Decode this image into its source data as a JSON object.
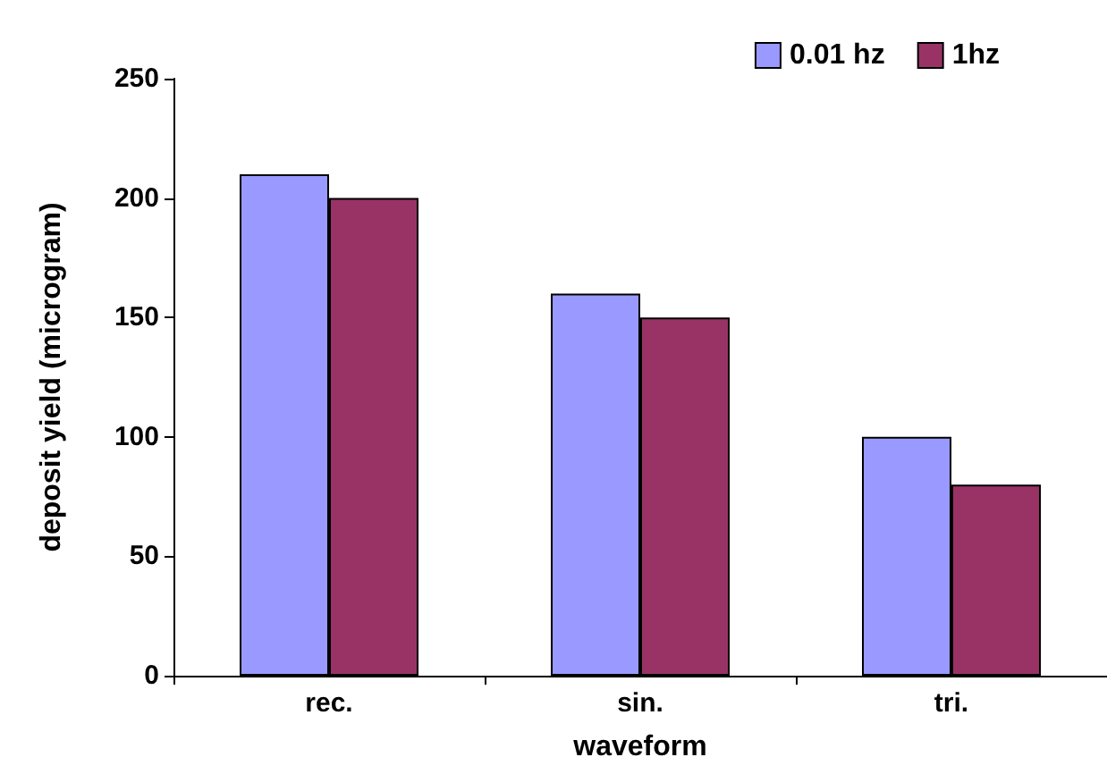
{
  "chart_data": {
    "type": "bar",
    "xlabel": "waveform",
    "ylabel": "deposit yield (microgram)",
    "categories": [
      "rec.",
      "sin.",
      "tri."
    ],
    "series": [
      {
        "name": "0.01 hz",
        "color": "#9999ff",
        "values": [
          210,
          160,
          100
        ]
      },
      {
        "name": "1hz",
        "color": "#993366",
        "values": [
          200,
          150,
          80
        ]
      }
    ],
    "ylim": [
      0,
      250
    ],
    "yticks": [
      0,
      50,
      100,
      150,
      200,
      250
    ],
    "grid": false,
    "legend": "top right"
  }
}
